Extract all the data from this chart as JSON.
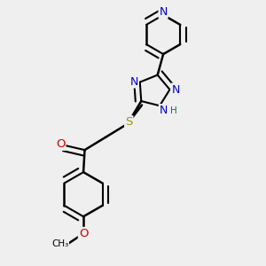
{
  "bg_color": "#efefef",
  "bond_color": "#000000",
  "bond_width": 1.8,
  "atom_colors": {
    "N": "#0000cc",
    "O": "#cc0000",
    "S": "#999900",
    "H": "#007070",
    "C": "#000000"
  },
  "font_size": 9,
  "fig_size": [
    3.0,
    3.0
  ],
  "dpi": 100
}
